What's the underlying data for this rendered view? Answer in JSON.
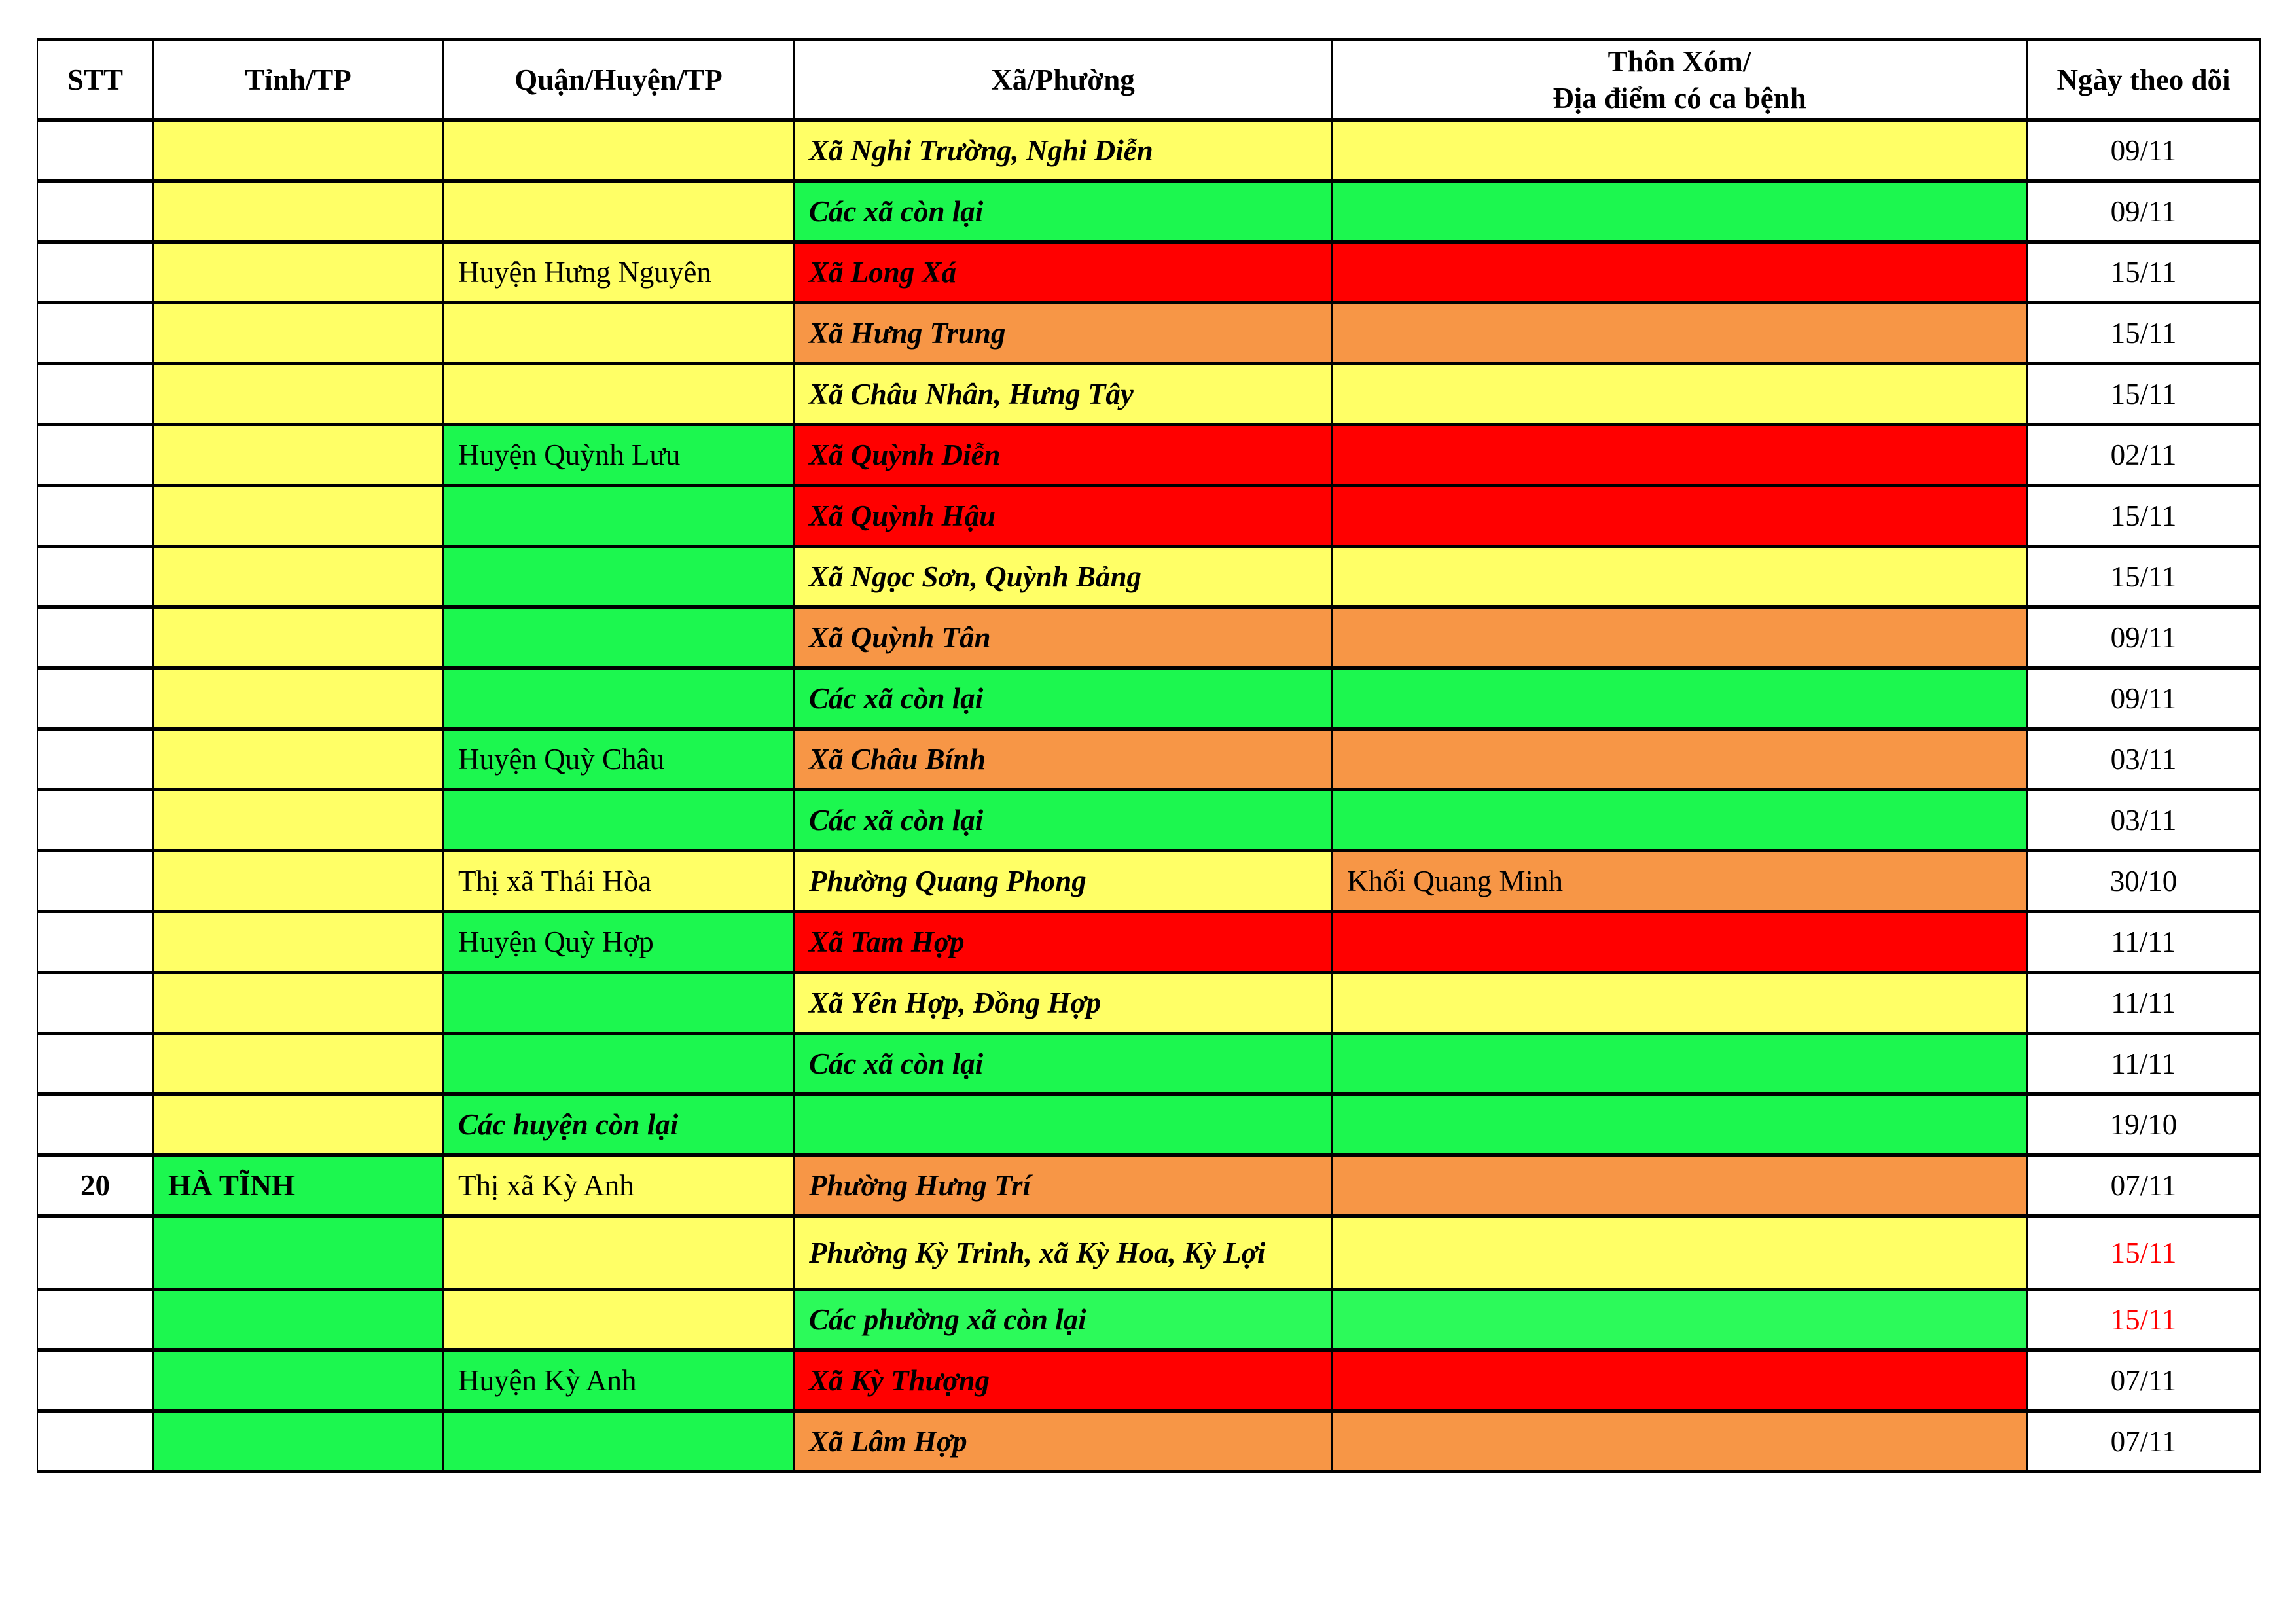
{
  "colors": {
    "Y": "#ffff66",
    "G": "#1cf74f",
    "G2": "#2cfa5a",
    "R": "#ff0000",
    "O": "#f79646",
    "W": "#ffffff",
    "date_red": "#ff0000"
  },
  "headers": [
    "STT",
    "Tỉnh/TP",
    "Quận/Huyện/TP",
    "Xã/Phường",
    "Thôn Xóm/\nĐịa điểm có ca bệnh",
    "Ngày theo dõi"
  ],
  "rows": [
    {
      "stt": "",
      "tinh": "",
      "quan": "",
      "xa": "Xã Nghi Trường, Nghi Diễn",
      "thon": "",
      "ngay": "09/11",
      "fill": [
        "W",
        "Y",
        "Y",
        "Y",
        "Y",
        "W"
      ]
    },
    {
      "stt": "",
      "tinh": "",
      "quan": "",
      "xa": "Các xã còn lại",
      "thon": "",
      "ngay": "09/11",
      "fill": [
        "W",
        "Y",
        "Y",
        "G",
        "G",
        "W"
      ]
    },
    {
      "stt": "",
      "tinh": "",
      "quan": "Huyện Hưng Nguyên",
      "xa": "Xã Long Xá",
      "thon": "",
      "ngay": "15/11",
      "fill": [
        "W",
        "Y",
        "Y",
        "R",
        "R",
        "W"
      ]
    },
    {
      "stt": "",
      "tinh": "",
      "quan": "",
      "xa": "Xã Hưng Trung",
      "thon": "",
      "ngay": "15/11",
      "fill": [
        "W",
        "Y",
        "Y",
        "O",
        "O",
        "W"
      ]
    },
    {
      "stt": "",
      "tinh": "",
      "quan": "",
      "xa": "Xã Châu Nhân, Hưng Tây",
      "thon": "",
      "ngay": "15/11",
      "fill": [
        "W",
        "Y",
        "Y",
        "Y",
        "Y",
        "W"
      ]
    },
    {
      "stt": "",
      "tinh": "",
      "quan": "Huyện Quỳnh Lưu",
      "xa": "Xã Quỳnh Diễn",
      "thon": "",
      "ngay": "02/11",
      "fill": [
        "W",
        "Y",
        "G",
        "R",
        "R",
        "W"
      ]
    },
    {
      "stt": "",
      "tinh": "",
      "quan": "",
      "xa": "Xã Quỳnh Hậu",
      "thon": "",
      "ngay": "15/11",
      "fill": [
        "W",
        "Y",
        "G",
        "R",
        "R",
        "W"
      ]
    },
    {
      "stt": "",
      "tinh": "",
      "quan": "",
      "xa": "Xã Ngọc Sơn, Quỳnh Bảng",
      "thon": "",
      "ngay": "15/11",
      "fill": [
        "W",
        "Y",
        "G",
        "Y",
        "Y",
        "W"
      ]
    },
    {
      "stt": "",
      "tinh": "",
      "quan": "",
      "xa": "Xã Quỳnh Tân",
      "thon": "",
      "ngay": "09/11",
      "fill": [
        "W",
        "Y",
        "G",
        "O",
        "O",
        "W"
      ]
    },
    {
      "stt": "",
      "tinh": "",
      "quan": "",
      "xa": "Các xã còn lại",
      "thon": "",
      "ngay": "09/11",
      "fill": [
        "W",
        "Y",
        "G",
        "G",
        "G",
        "W"
      ]
    },
    {
      "stt": "",
      "tinh": "",
      "quan": "Huyện Quỳ Châu",
      "xa": "Xã Châu Bính",
      "thon": "",
      "ngay": "03/11",
      "fill": [
        "W",
        "Y",
        "G",
        "O",
        "O",
        "W"
      ]
    },
    {
      "stt": "",
      "tinh": "",
      "quan": "",
      "xa": "Các xã còn lại",
      "thon": "",
      "ngay": "03/11",
      "fill": [
        "W",
        "Y",
        "G",
        "G",
        "G",
        "W"
      ]
    },
    {
      "stt": "",
      "tinh": "",
      "quan": "Thị xã Thái Hòa",
      "xa": "Phường Quang Phong",
      "thon": "Khối Quang Minh",
      "ngay": "30/10",
      "fill": [
        "W",
        "Y",
        "Y",
        "Y",
        "O",
        "W"
      ]
    },
    {
      "stt": "",
      "tinh": "",
      "quan": "Huyện Quỳ Hợp",
      "xa": "Xã Tam Hợp",
      "thon": "",
      "ngay": "11/11",
      "fill": [
        "W",
        "Y",
        "G",
        "R",
        "R",
        "W"
      ]
    },
    {
      "stt": "",
      "tinh": "",
      "quan": "",
      "xa": "Xã Yên Hợp, Đồng Hợp",
      "thon": "",
      "ngay": "11/11",
      "fill": [
        "W",
        "Y",
        "G",
        "Y",
        "Y",
        "W"
      ]
    },
    {
      "stt": "",
      "tinh": "",
      "quan": "",
      "xa": "Các xã còn lại",
      "thon": "",
      "ngay": "11/11",
      "fill": [
        "W",
        "Y",
        "G",
        "G",
        "G",
        "W"
      ]
    },
    {
      "stt": "",
      "tinh": "",
      "quan": "Các huyện còn lại",
      "quan_emphasis": true,
      "xa": "",
      "thon": "",
      "ngay": "19/10",
      "fill": [
        "W",
        "Y",
        "G",
        "G",
        "G",
        "W"
      ]
    },
    {
      "stt": "20",
      "tinh": "HÀ TĨNH",
      "quan": "Thị xã Kỳ Anh",
      "xa": "Phường Hưng Trí",
      "thon": "",
      "ngay": "07/11",
      "fill": [
        "W",
        "G",
        "Y",
        "O",
        "O",
        "W"
      ]
    },
    {
      "stt": "",
      "tinh": "",
      "quan": "",
      "xa": "Phường Kỳ Trinh, xã Kỳ Hoa, Kỳ Lợi",
      "thon": "",
      "ngay": "15/11",
      "ngay_red": true,
      "tall": true,
      "fill": [
        "W",
        "G",
        "Y",
        "Y",
        "Y",
        "W"
      ]
    },
    {
      "stt": "",
      "tinh": "",
      "quan": "",
      "xa": "Các phường xã còn lại",
      "thon": "",
      "ngay": "15/11",
      "ngay_red": true,
      "fill": [
        "W",
        "G",
        "Y",
        "G2",
        "G2",
        "W"
      ]
    },
    {
      "stt": "",
      "tinh": "",
      "quan": "Huyện Kỳ Anh",
      "xa": "Xã Kỳ Thượng",
      "thon": "",
      "ngay": "07/11",
      "fill": [
        "W",
        "G",
        "G",
        "R",
        "R",
        "W"
      ]
    },
    {
      "stt": "",
      "tinh": "",
      "quan": "",
      "xa": "Xã Lâm Hợp",
      "thon": "",
      "ngay": "07/11",
      "fill": [
        "W",
        "G",
        "G",
        "O",
        "O",
        "W"
      ]
    }
  ]
}
